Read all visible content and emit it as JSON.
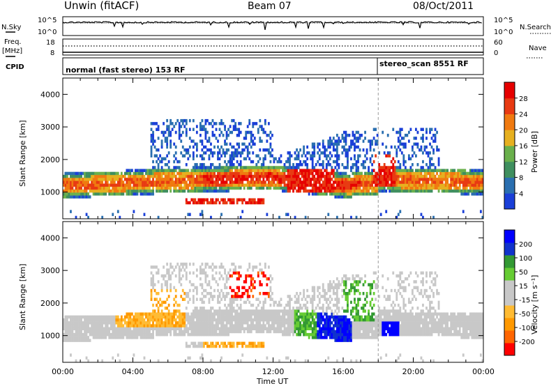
{
  "header": {
    "station": "Unwin (fitACF)",
    "beam": "Beam 07",
    "date": "08/Oct/2011"
  },
  "top_strips": {
    "nsky_label": "N.Sky",
    "nsky_ticks": [
      "10^5",
      "10^0"
    ],
    "nsearch_label": "N.Search",
    "nsearch_ticks": [
      "10^5",
      "10^0"
    ],
    "freq_label": "Freq.",
    "freq_unit": "[MHz]",
    "freq_ticks": [
      "18",
      "8"
    ],
    "nave_label": "Nave",
    "nave_ticks": [
      "60",
      "0"
    ],
    "cpid_label": "CPID",
    "cpid_segments": [
      {
        "text": "normal (fast stereo) 153 RF",
        "start_hour": 0
      },
      {
        "text": "stereo_scan 8551 RF",
        "start_hour": 18
      }
    ]
  },
  "colors": {
    "power_scale": [
      "#1a3fd8",
      "#2a6fb0",
      "#3f8f5f",
      "#6ab04c",
      "#e6b020",
      "#f07a10",
      "#e83a12",
      "#e60000"
    ],
    "velocity_scale": [
      "#ff0000",
      "#ff6600",
      "#ff9900",
      "#ffbb33",
      "#c8c8c8",
      "#c8c8c8",
      "#66cc33",
      "#339933",
      "#1133cc",
      "#0000ff"
    ],
    "ground_scatter": "#c8c8c8"
  },
  "chart_data": [
    {
      "type": "heatmap",
      "title": "Power",
      "xlabel": "Time UT",
      "ylabel": "Slant Range [km]",
      "x_ticks": [
        "00:00",
        "04:00",
        "08:00",
        "12:00",
        "16:00",
        "20:00",
        "00:00"
      ],
      "y_ticks": [
        "1000",
        "2000",
        "3000",
        "4000"
      ],
      "xlim_hours": [
        0,
        24
      ],
      "ylim_km": [
        180,
        4500
      ],
      "colorbar_label": "Power [dB]",
      "colorbar_ticks": [
        "28",
        "24",
        "20",
        "16",
        "12",
        "8",
        "4"
      ],
      "regions": [
        {
          "hours": [
            0,
            24
          ],
          "range_km": [
            900,
            1500
          ],
          "description": "main band of backscatter, strongest 8-16 UT"
        },
        {
          "hours": [
            7,
            11
          ],
          "range_km": [
            600,
            800
          ],
          "value_db": 22
        },
        {
          "hours": [
            13,
            15
          ],
          "range_km": [
            1000,
            1600
          ],
          "value_db": 28
        },
        {
          "hours": [
            18,
            19
          ],
          "range_km": [
            1200,
            2000
          ],
          "value_db": 26
        }
      ],
      "mode_change_hour": 18
    },
    {
      "type": "heatmap",
      "title": "Velocity",
      "xlabel": "Time UT",
      "ylabel": "Slant Range [km]",
      "x_ticks": [
        "00:00",
        "04:00",
        "08:00",
        "12:00",
        "16:00",
        "20:00",
        "00:00"
      ],
      "y_ticks": [
        "1000",
        "2000",
        "3000",
        "4000"
      ],
      "xlim_hours": [
        0,
        24
      ],
      "ylim_km": [
        180,
        4500
      ],
      "colorbar_label": "Velocity [m s⁻¹]",
      "colorbar_ticks": [
        "200",
        "100",
        "50",
        "15",
        "-15",
        "-50",
        "-100",
        "-200"
      ],
      "regions": [
        {
          "hours": [
            0,
            24
          ],
          "range_km": [
            800,
            1700
          ],
          "description": "ground scatter (grey)"
        },
        {
          "hours": [
            10,
            11.5
          ],
          "range_km": [
            2200,
            2800
          ],
          "value_ms": -200
        },
        {
          "hours": [
            13.5,
            16
          ],
          "range_km": [
            800,
            1600
          ],
          "value_ms": 150
        },
        {
          "hours": [
            18.5,
            19
          ],
          "range_km": [
            800,
            1200
          ],
          "value_ms": 200
        }
      ],
      "mode_change_hour": 18
    }
  ]
}
